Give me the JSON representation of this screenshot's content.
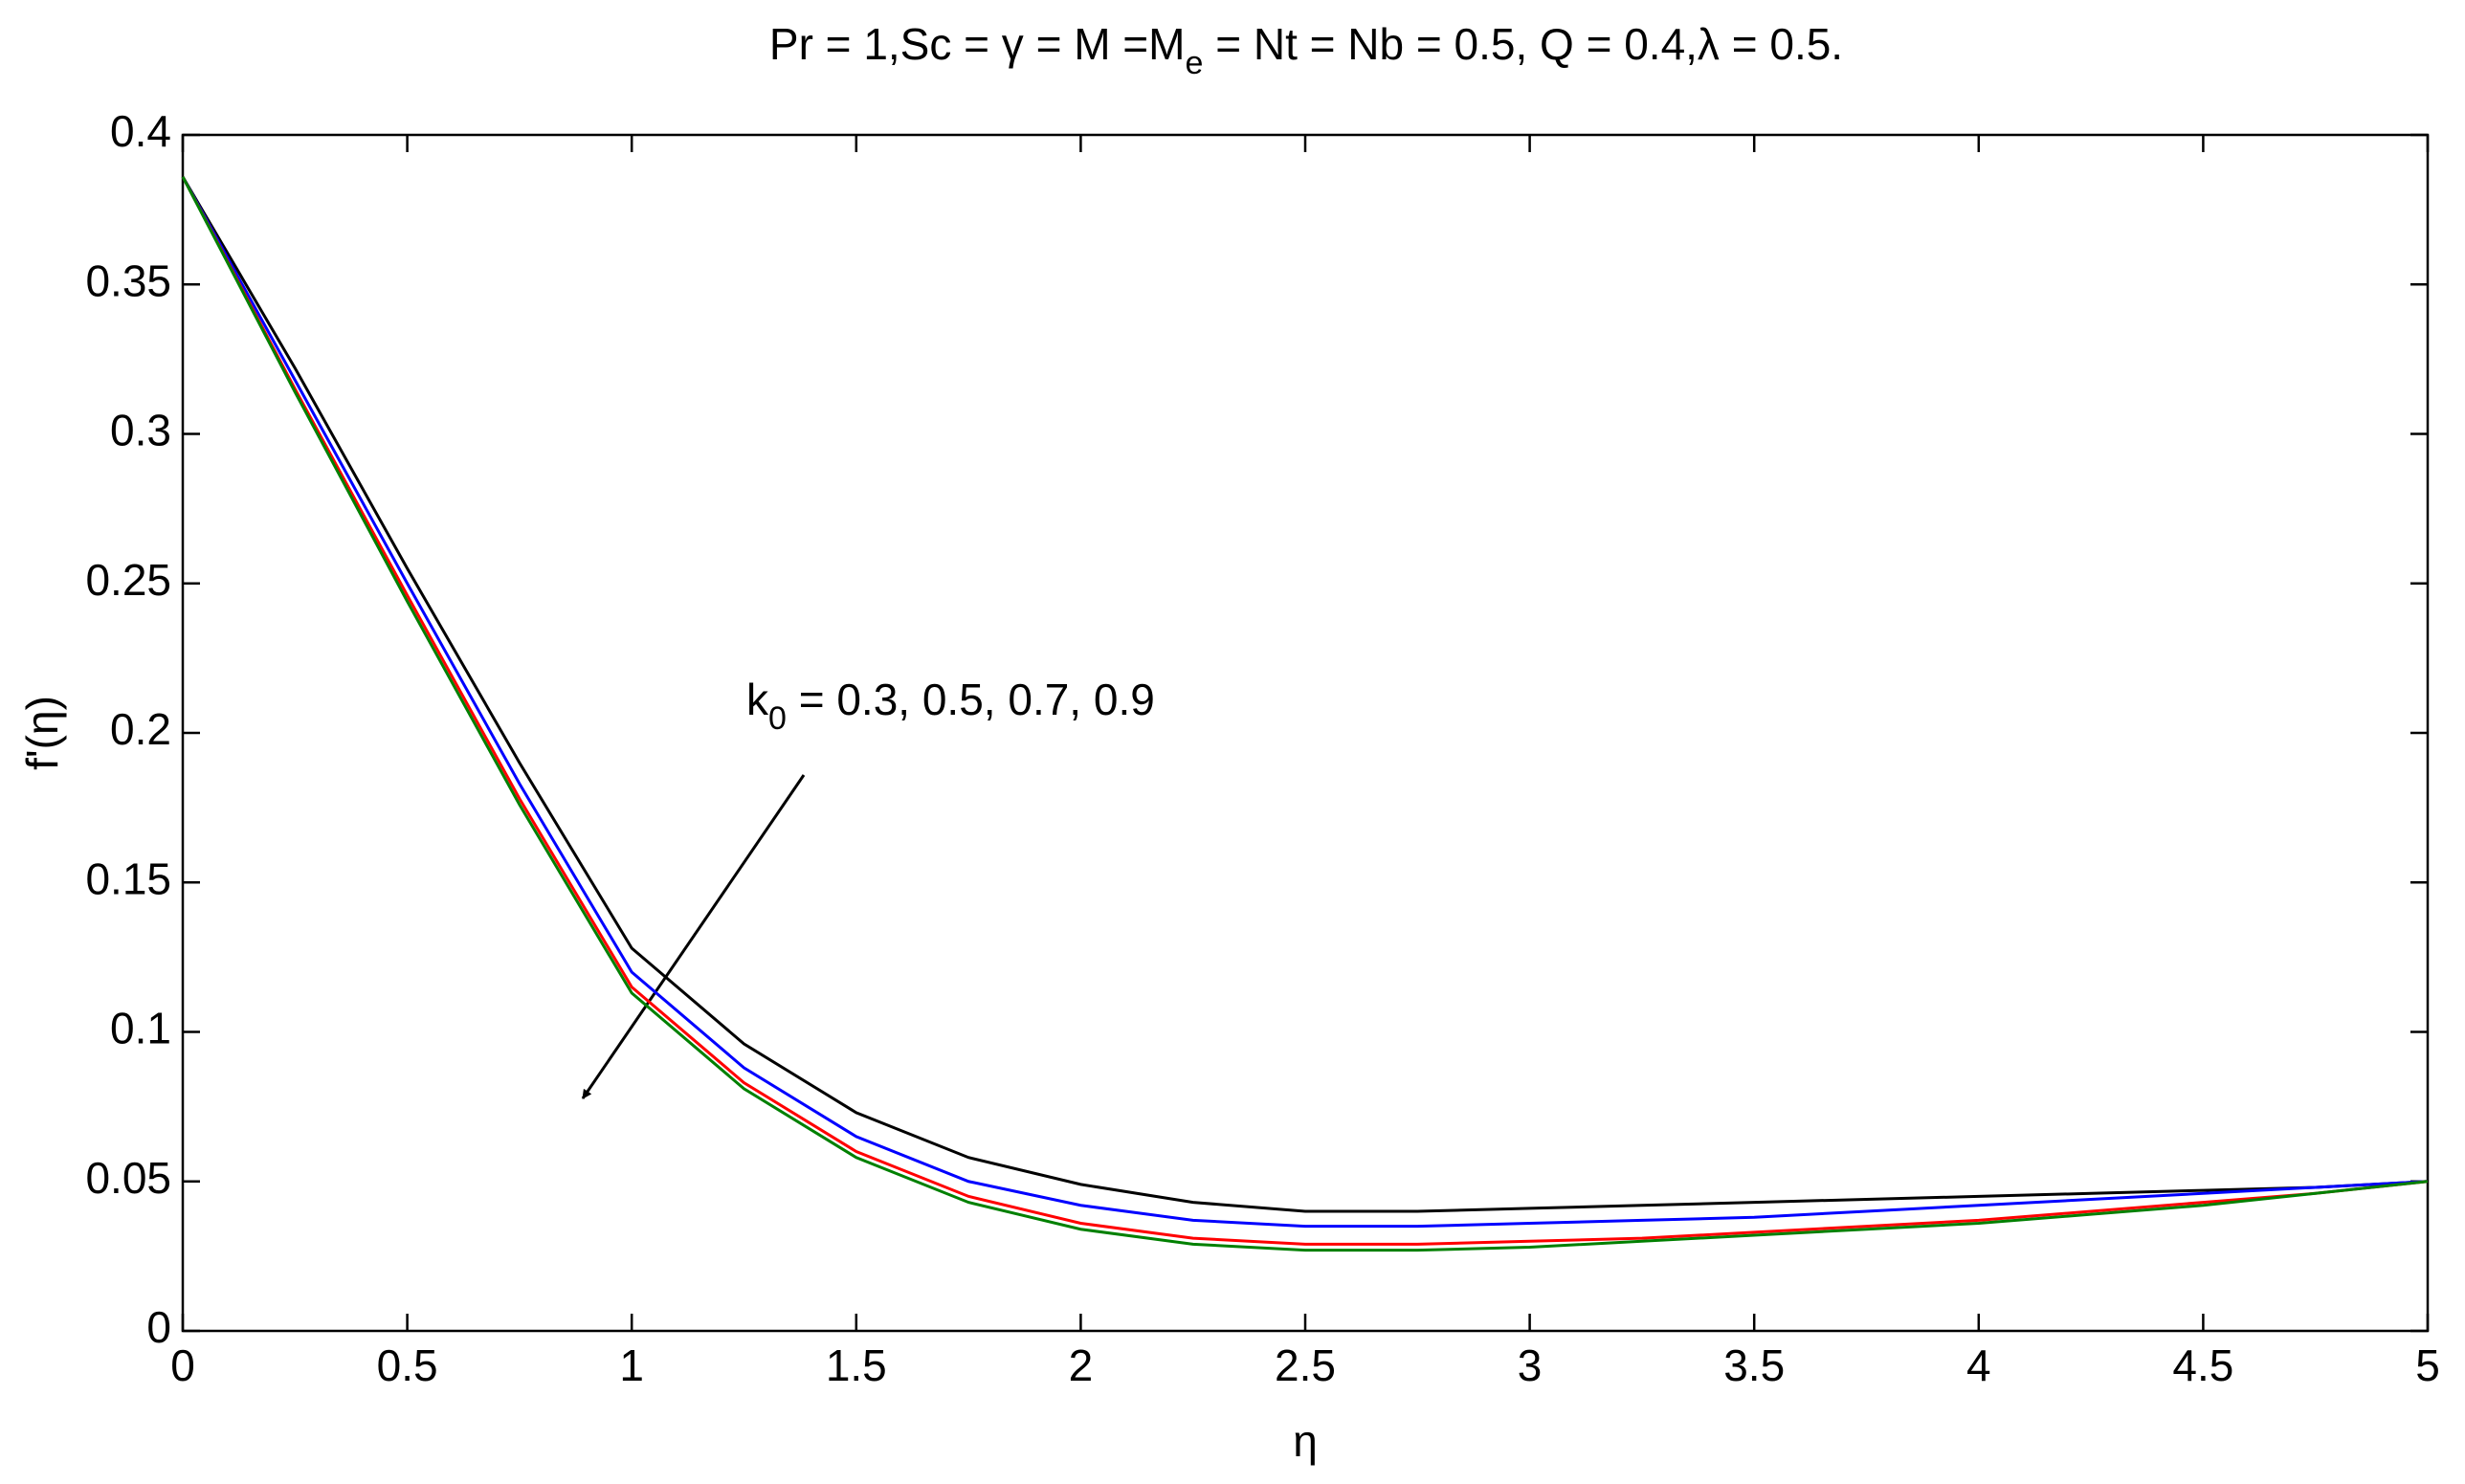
{
  "chart_data": {
    "type": "line",
    "title": [
      "Pr = 1,Sc = γ = M =M",
      "e",
      " = Nt = Nb = 0.5, Q = 0.4,λ = 0.5."
    ],
    "annotation": [
      "k",
      "0",
      " = 0.3, 0.5, 0.7, 0.9"
    ],
    "xlabel": "η",
    "ylabel": "f'(η)",
    "x": [
      0,
      0.25,
      0.5,
      0.75,
      1,
      1.25,
      1.5,
      1.75,
      2,
      2.25,
      2.5,
      2.75,
      3,
      3.25,
      3.5,
      3.75,
      4,
      4.25,
      4.5,
      4.75,
      5
    ],
    "series": [
      {
        "color": "#000000",
        "values": [
          0.386,
          0.322,
          0.255,
          0.19,
          0.128,
          0.096,
          0.073,
          0.058,
          0.049,
          0.043,
          0.04,
          0.04,
          0.041,
          0.042,
          0.043,
          0.044,
          0.045,
          0.046,
          0.047,
          0.048,
          0.05
        ]
      },
      {
        "color": "#0000ff",
        "values": [
          0.386,
          0.318,
          0.25,
          0.183,
          0.12,
          0.088,
          0.065,
          0.05,
          0.042,
          0.037,
          0.035,
          0.035,
          0.036,
          0.037,
          0.038,
          0.04,
          0.042,
          0.044,
          0.046,
          0.048,
          0.05
        ]
      },
      {
        "color": "#ff0000",
        "values": [
          0.386,
          0.315,
          0.246,
          0.178,
          0.115,
          0.083,
          0.06,
          0.045,
          0.036,
          0.031,
          0.029,
          0.029,
          0.03,
          0.031,
          0.033,
          0.035,
          0.037,
          0.04,
          0.043,
          0.046,
          0.05
        ]
      },
      {
        "color": "#008000",
        "values": [
          0.386,
          0.314,
          0.244,
          0.176,
          0.113,
          0.081,
          0.058,
          0.043,
          0.034,
          0.029,
          0.027,
          0.027,
          0.028,
          0.03,
          0.032,
          0.034,
          0.036,
          0.039,
          0.042,
          0.046,
          0.05
        ]
      }
    ],
    "xlim": [
      0,
      5
    ],
    "xticks": [
      0,
      0.5,
      1,
      1.5,
      2,
      2.5,
      3,
      3.5,
      4,
      4.5,
      5
    ],
    "ylim": [
      0,
      0.4
    ],
    "yticks": [
      0,
      0.05,
      0.1,
      0.15,
      0.2,
      0.25,
      0.3,
      0.35,
      0.4
    ],
    "grid": false
  }
}
